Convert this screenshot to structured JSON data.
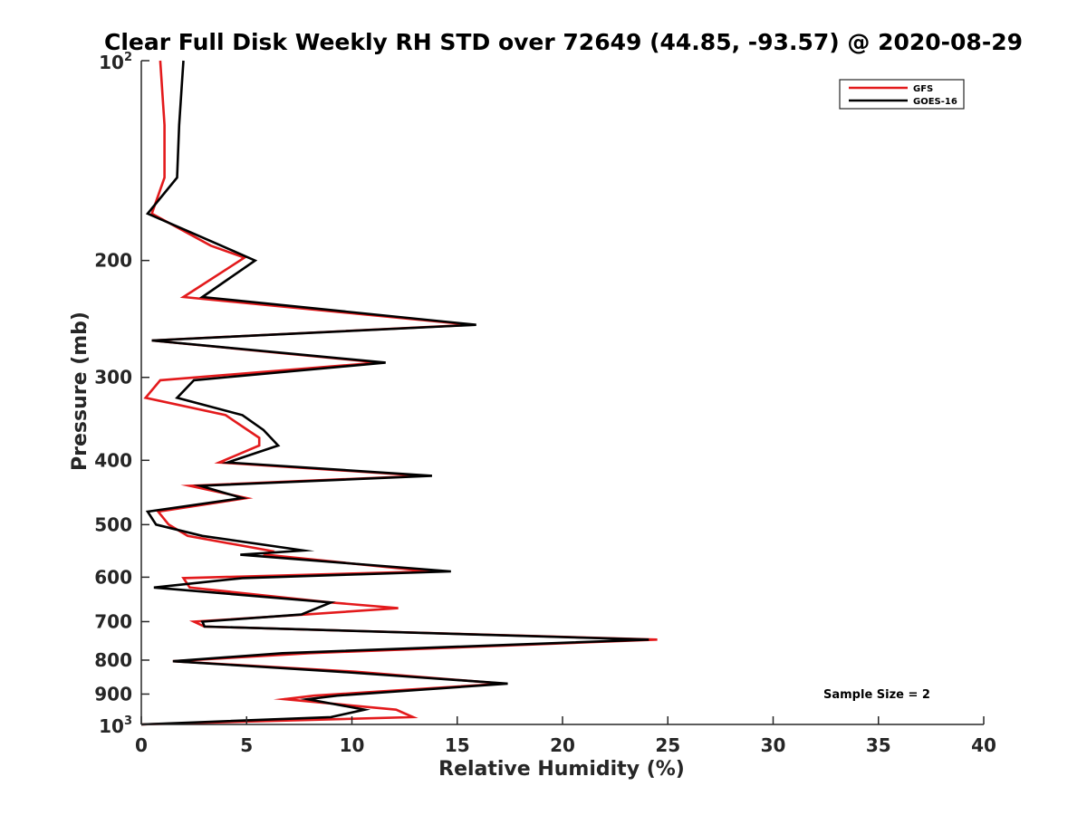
{
  "chart_data": {
    "type": "line",
    "title": "Clear Full Disk Weekly RH STD over 72649 (44.85, -93.57) @ 2020-08-29",
    "xlabel": "Relative Humidity (%)",
    "ylabel": "Pressure (mb)",
    "xlim": [
      0,
      40
    ],
    "ylim": [
      100,
      1000
    ],
    "y_scale": "log",
    "y_reversed": true,
    "grid": false,
    "legend_position": "top-right",
    "x_ticks": [
      "0",
      "5",
      "10",
      "15",
      "20",
      "25",
      "30",
      "35",
      "40"
    ],
    "y_ticks": [
      {
        "value": 100,
        "base": "10",
        "exp": "2"
      },
      {
        "value": 200,
        "label": "200"
      },
      {
        "value": 300,
        "label": "300"
      },
      {
        "value": 400,
        "label": "400"
      },
      {
        "value": 500,
        "label": "500"
      },
      {
        "value": 600,
        "label": "600"
      },
      {
        "value": 700,
        "label": "700"
      },
      {
        "value": 800,
        "label": "800"
      },
      {
        "value": 900,
        "label": "900"
      },
      {
        "value": 1000,
        "base": "10",
        "exp": "3"
      }
    ],
    "series": [
      {
        "name": "GFS",
        "color": "#e31a1c",
        "points": [
          [
            0.9,
            100
          ],
          [
            1.1,
            125
          ],
          [
            1.1,
            150
          ],
          [
            0.5,
            170
          ],
          [
            3.3,
            190
          ],
          [
            4.9,
            198
          ],
          [
            2.0,
            227
          ],
          [
            15.7,
            250
          ],
          [
            0.5,
            264
          ],
          [
            11.3,
            285
          ],
          [
            0.9,
            303
          ],
          [
            0.2,
            322
          ],
          [
            4.0,
            342
          ],
          [
            5.6,
            370
          ],
          [
            5.6,
            380
          ],
          [
            3.7,
            403
          ],
          [
            13.4,
            422
          ],
          [
            2.3,
            437
          ],
          [
            5.0,
            456
          ],
          [
            0.8,
            478
          ],
          [
            1.3,
            500
          ],
          [
            2.2,
            520
          ],
          [
            6.2,
            548
          ],
          [
            5.9,
            555
          ],
          [
            13.7,
            588
          ],
          [
            2.0,
            602
          ],
          [
            2.3,
            622
          ],
          [
            9.0,
            655
          ],
          [
            12.2,
            668
          ],
          [
            7.8,
            683
          ],
          [
            2.5,
            700
          ],
          [
            3.0,
            712
          ],
          [
            24.5,
            745
          ],
          [
            8.0,
            781
          ],
          [
            1.5,
            803
          ],
          [
            10.2,
            833
          ],
          [
            17.2,
            868
          ],
          [
            8.2,
            905
          ],
          [
            6.8,
            916
          ],
          [
            12.1,
            950
          ],
          [
            12.9,
            975
          ],
          [
            0.0,
            1000
          ]
        ]
      },
      {
        "name": "GOES-16",
        "color": "#000000",
        "points": [
          [
            2.0,
            100
          ],
          [
            1.8,
            125
          ],
          [
            1.7,
            150
          ],
          [
            0.3,
            170
          ],
          [
            3.8,
            190
          ],
          [
            5.4,
            200
          ],
          [
            2.9,
            227
          ],
          [
            15.9,
            250
          ],
          [
            0.5,
            264
          ],
          [
            11.6,
            285
          ],
          [
            2.5,
            303
          ],
          [
            1.7,
            322
          ],
          [
            4.8,
            342
          ],
          [
            5.8,
            360
          ],
          [
            6.5,
            380
          ],
          [
            4.1,
            403
          ],
          [
            13.8,
            422
          ],
          [
            2.8,
            437
          ],
          [
            4.8,
            456
          ],
          [
            0.3,
            478
          ],
          [
            0.7,
            500
          ],
          [
            2.9,
            520
          ],
          [
            7.7,
            547
          ],
          [
            4.7,
            555
          ],
          [
            14.7,
            588
          ],
          [
            4.8,
            602
          ],
          [
            0.6,
            622
          ],
          [
            9.0,
            655
          ],
          [
            7.6,
            683
          ],
          [
            2.9,
            700
          ],
          [
            3.0,
            712
          ],
          [
            24.1,
            745
          ],
          [
            6.7,
            781
          ],
          [
            1.5,
            803
          ],
          [
            9.4,
            833
          ],
          [
            17.4,
            868
          ],
          [
            9.3,
            905
          ],
          [
            7.9,
            916
          ],
          [
            10.6,
            950
          ],
          [
            9.0,
            975
          ],
          [
            0.0,
            1000
          ]
        ]
      }
    ],
    "annotation": "Sample Size = 2"
  }
}
